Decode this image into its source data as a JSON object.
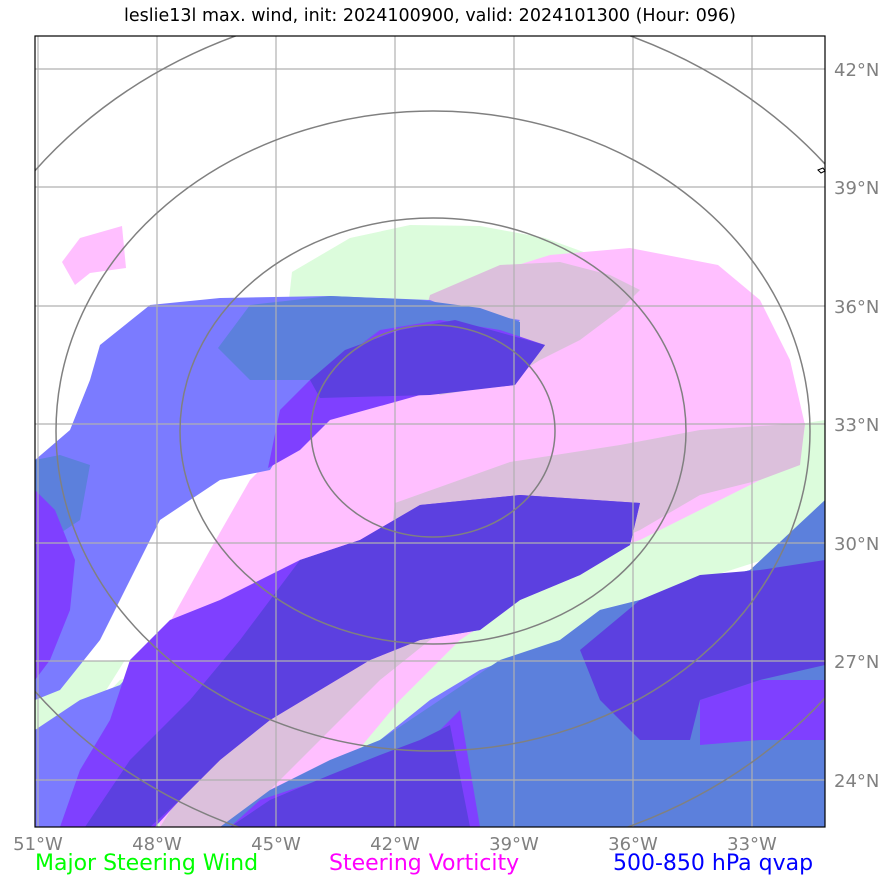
{
  "title": "leslie13l max. wind, init: 2024100900, valid: 2024101300 (Hour: 096)",
  "lon_labels": [
    "51°W",
    "48°W",
    "45°W",
    "42°W",
    "39°W",
    "36°W",
    "33°W"
  ],
  "lat_labels": [
    "42°N",
    "39°N",
    "36°N",
    "33°N",
    "30°N",
    "27°N",
    "24°N"
  ],
  "legend": {
    "wind": "Major Steering Wind",
    "vorticity": "Steering Vorticity",
    "qvap": "500-850 hPa qvap"
  },
  "colors": {
    "wind": "#00ff00",
    "vorticity": "#ff00ff",
    "qvap": "#0000ff",
    "wind_fill": "#dcfcdc",
    "vort_fill": "#ffbfff",
    "vort_wind_fill": "#dcc0dc",
    "qvap_fill": "#7b7bff",
    "qvap_wind_fill": "#5c80dc",
    "qvap_dense_fill": "#7f40ff",
    "qvap_dense_wind_fill": "#5c40e0",
    "range_rings": "#808080",
    "grid": "#b0b0b0"
  },
  "map": {
    "lon_range": [
      -51,
      -31.2
    ],
    "lat_range": [
      22.9,
      42.8
    ],
    "center": [
      -41.0,
      33.0
    ],
    "grid_spacing_deg": 3
  }
}
